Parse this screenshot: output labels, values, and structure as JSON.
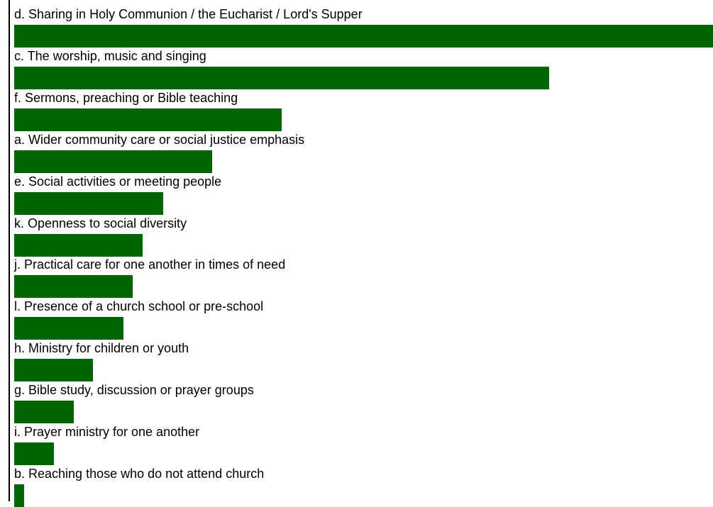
{
  "chart_data": {
    "type": "bar",
    "orientation": "horizontal",
    "bar_color": "#006400",
    "x_max": 100,
    "grid": false,
    "legend": "none",
    "categories": [
      "d. Sharing in Holy Communion / the Eucharist / Lord's Supper",
      "c. The worship, music and singing",
      "f. Sermons, preaching or Bible teaching",
      "a. Wider community care or social justice emphasis",
      "e. Social activities or meeting people",
      "k. Openness to social diversity",
      "j. Practical care for one another in times of need",
      "l. Presence of a church school or pre-school",
      "h. Ministry for children or youth",
      "g. Bible study, discussion or prayer groups",
      "i. Prayer ministry for one another",
      "b. Reaching those who do not attend church"
    ],
    "values": [
      100,
      76.5,
      38.3,
      28.3,
      21.3,
      18.4,
      17.0,
      15.6,
      11.3,
      8.5,
      5.7,
      1.4
    ]
  }
}
